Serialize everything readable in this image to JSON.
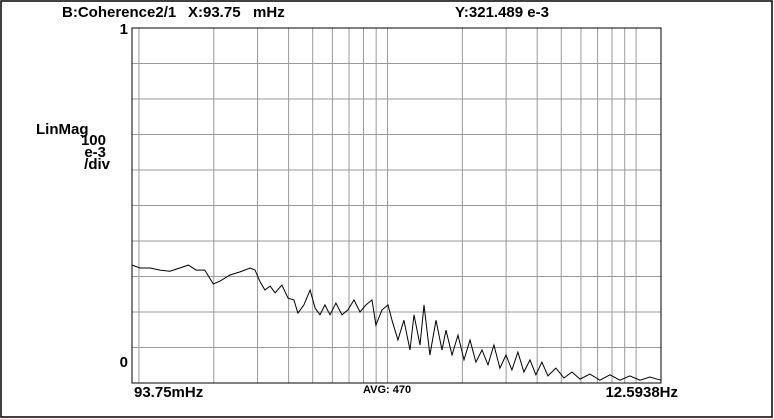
{
  "chart_data": {
    "type": "line",
    "trace_label": "B:Coherence2/1",
    "x_marker": "X:93.75   mHz",
    "y_marker": "Y:321.489 e-3",
    "scale_mode": "LinMag",
    "scale_per_div": "100",
    "scale_unit": "e-3",
    "scale_div": "/div",
    "x_start_label": "93.75mHz",
    "x_end_label": "12.5938Hz",
    "average_label": "AVG: 470",
    "xlim": [
      0.09375,
      12.5938
    ],
    "log_x": true,
    "xgrid": [
      0.1,
      0.2,
      0.3,
      0.4,
      0.5,
      0.6,
      0.7,
      0.8,
      0.9,
      1,
      2,
      3,
      4,
      5,
      6,
      7,
      8,
      9,
      10
    ],
    "ylim": [
      0,
      1
    ],
    "yticks": [
      0,
      0.1,
      0.2,
      0.3,
      0.4,
      0.5,
      0.6,
      0.7,
      0.8,
      0.9,
      1
    ],
    "grid": true,
    "color": "#000000",
    "x": [
      0.0938,
      0.101,
      0.111,
      0.1215,
      0.133,
      0.146,
      0.158,
      0.17,
      0.184,
      0.199,
      0.212,
      0.232,
      0.255,
      0.28,
      0.293,
      0.307,
      0.321,
      0.337,
      0.353,
      0.376,
      0.398,
      0.42,
      0.436,
      0.461,
      0.488,
      0.511,
      0.535,
      0.56,
      0.587,
      0.62,
      0.656,
      0.693,
      0.733,
      0.775,
      0.819,
      0.866,
      0.898,
      0.95,
      1.004,
      1.042,
      1.101,
      1.164,
      1.231,
      1.278,
      1.351,
      1.402,
      1.481,
      1.567,
      1.656,
      1.718,
      1.817,
      1.92,
      2.03,
      2.146,
      2.268,
      2.398,
      2.535,
      2.679,
      2.833,
      2.995,
      3.166,
      3.347,
      3.538,
      3.741,
      3.954,
      4.18,
      4.419,
      4.759,
      5.125,
      5.52,
      5.945,
      6.521,
      7.152,
      7.849,
      8.609,
      9.443,
      10.36,
      11.36,
      12.594
    ],
    "values": [
      0.332,
      0.324,
      0.324,
      0.318,
      0.315,
      0.324,
      0.332,
      0.318,
      0.318,
      0.279,
      0.287,
      0.304,
      0.313,
      0.324,
      0.318,
      0.285,
      0.262,
      0.273,
      0.254,
      0.276,
      0.239,
      0.234,
      0.197,
      0.22,
      0.262,
      0.211,
      0.192,
      0.22,
      0.192,
      0.225,
      0.192,
      0.206,
      0.234,
      0.2,
      0.22,
      0.234,
      0.163,
      0.206,
      0.22,
      0.177,
      0.121,
      0.177,
      0.093,
      0.192,
      0.107,
      0.22,
      0.079,
      0.177,
      0.093,
      0.149,
      0.079,
      0.135,
      0.065,
      0.121,
      0.059,
      0.093,
      0.051,
      0.107,
      0.042,
      0.079,
      0.037,
      0.087,
      0.031,
      0.065,
      0.023,
      0.059,
      0.02,
      0.042,
      0.014,
      0.031,
      0.011,
      0.025,
      0.008,
      0.023,
      0.008,
      0.02,
      0.008,
      0.017,
      0.008
    ]
  }
}
